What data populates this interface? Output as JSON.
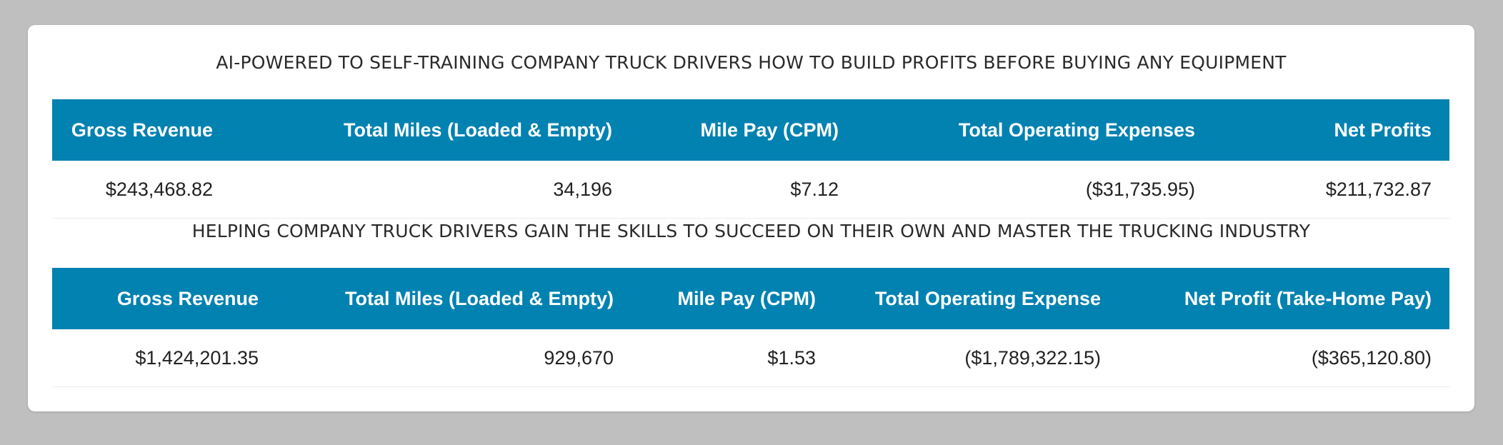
{
  "colors": {
    "header_bg": "#0282b1",
    "header_text": "#ffffff",
    "page_bg": "#bfbfbf",
    "card_bg": "#ffffff"
  },
  "section1": {
    "title": "AI-POWERED TO SELF-TRAINING COMPANY TRUCK DRIVERS HOW TO BUILD PROFITS BEFORE BUYING ANY EQUIPMENT",
    "headers": [
      "Gross Revenue",
      "Total Miles (Loaded & Empty)",
      "Mile Pay (CPM)",
      "Total Operating Expenses",
      "Net Profits"
    ],
    "row": [
      "$243,468.82",
      "34,196",
      "$7.12",
      "($31,735.95)",
      "$211,732.87"
    ]
  },
  "section2": {
    "title": "HELPING COMPANY TRUCK DRIVERS GAIN THE SKILLS TO SUCCEED ON THEIR OWN AND MASTER THE TRUCKING INDUSTRY",
    "headers": [
      "Gross Revenue",
      "Total Miles (Loaded & Empty)",
      "Mile Pay (CPM)",
      "Total Operating Expense",
      "Net Profit (Take-Home Pay)"
    ],
    "row": [
      "$1,424,201.35",
      "929,670",
      "$1.53",
      "($1,789,322.15)",
      "($365,120.80)"
    ]
  }
}
